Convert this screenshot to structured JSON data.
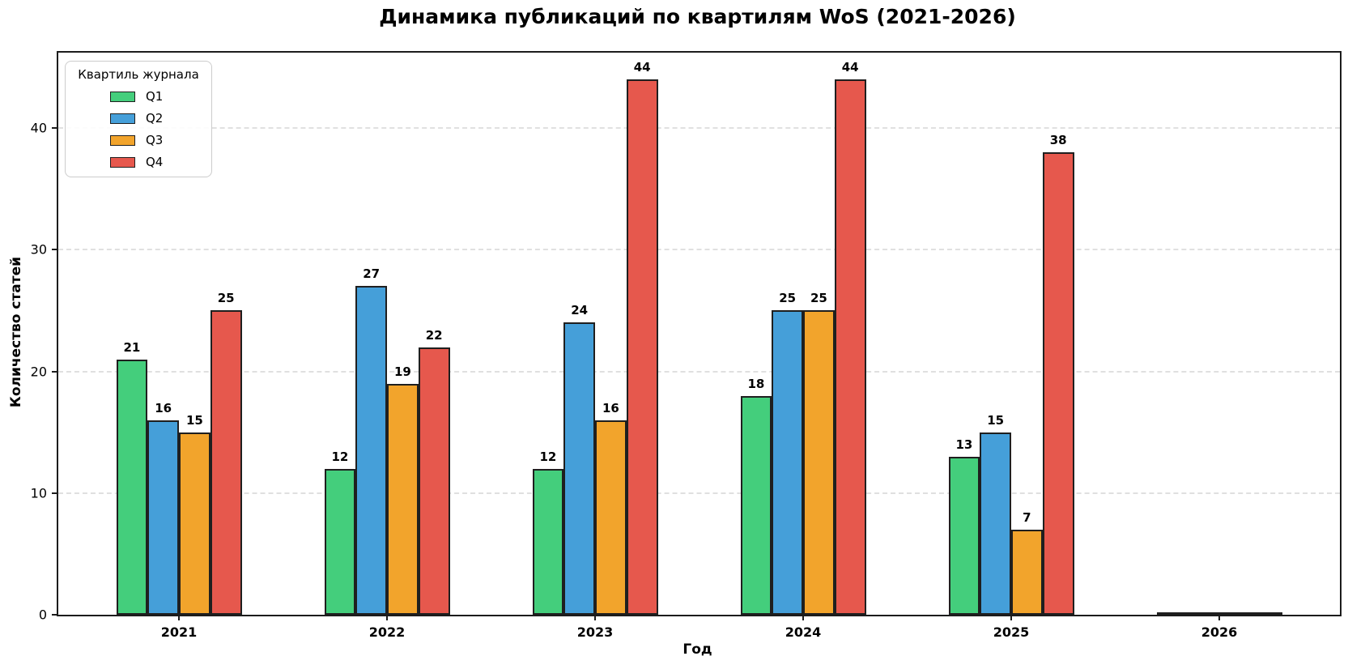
{
  "title": "Динамика публикаций по квартилям WoS (2021-2026)",
  "chart_data": {
    "type": "bar",
    "title": "Динамика публикаций по квартилям WoS (2021-2026)",
    "xlabel": "Год",
    "ylabel": "Количество статей",
    "categories": [
      "2021",
      "2022",
      "2023",
      "2024",
      "2025",
      "2026"
    ],
    "series": [
      {
        "name": "Q1",
        "color": "#44ce7c",
        "values": [
          21,
          12,
          12,
          18,
          13,
          0
        ]
      },
      {
        "name": "Q2",
        "color": "#459fd9",
        "values": [
          16,
          27,
          24,
          25,
          15,
          0
        ]
      },
      {
        "name": "Q3",
        "color": "#f2a42c",
        "values": [
          15,
          19,
          16,
          25,
          7,
          0
        ]
      },
      {
        "name": "Q4",
        "color": "#e6584d",
        "values": [
          25,
          22,
          44,
          44,
          38,
          0
        ]
      }
    ],
    "yticks": [
      0,
      10,
      20,
      30,
      40
    ],
    "ylim": [
      0,
      46.2
    ],
    "grid": "horizontal-dashed",
    "bar_edge_color": "#1f1f1f",
    "bar_labels_shown": true,
    "legend_title": "Квартиль журнала",
    "legend_position": "upper-left"
  }
}
